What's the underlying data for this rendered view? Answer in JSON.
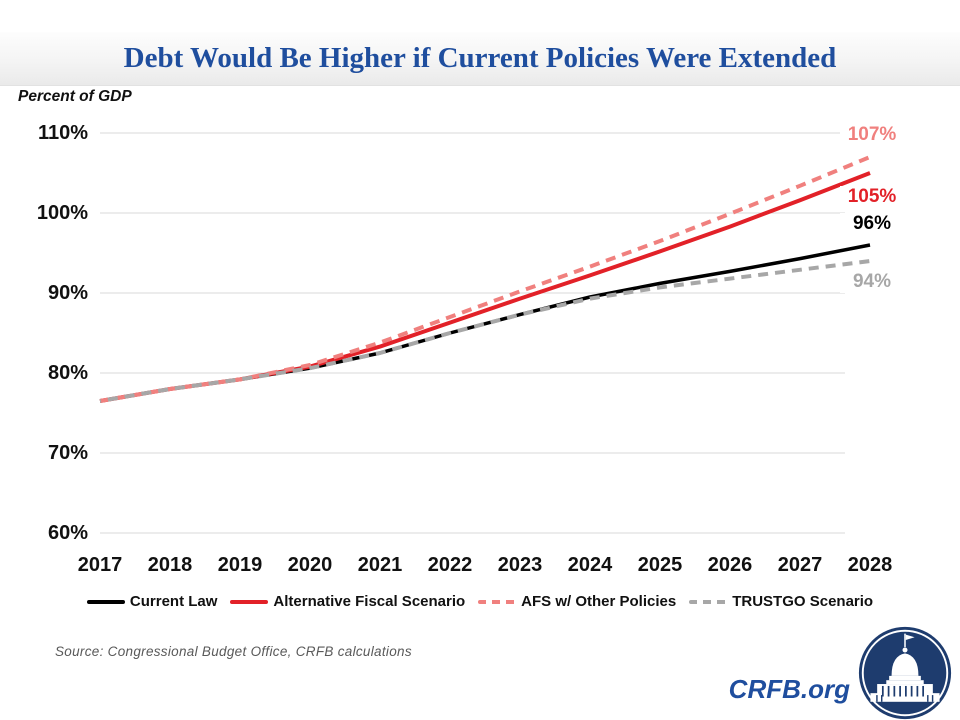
{
  "title": "Debt Would Be Higher if Current Policies Were Extended",
  "y_axis_label": "Percent of GDP",
  "source": "Source: Congressional Budget Office, CRFB calculations",
  "footer": {
    "brand": "CRFB.org",
    "logo": "capitol-icon"
  },
  "colors": {
    "title_blue": "#1F4E9E",
    "gridline": "#D9D9D9",
    "current_law": "#000000",
    "afs": "#E22128",
    "afs_other": "#F0807E",
    "trustgo": "#A7A7A7",
    "source_text": "#595959",
    "logo_navy": "#1E3C6E"
  },
  "chart_data": {
    "type": "line",
    "x": [
      2017,
      2018,
      2019,
      2020,
      2021,
      2022,
      2023,
      2024,
      2025,
      2026,
      2027,
      2028
    ],
    "ylim": [
      60,
      110
    ],
    "grid": true,
    "legend_position": "bottom",
    "y_ticks": [
      "110%",
      "100%",
      "90%",
      "80%",
      "70%",
      "60%"
    ],
    "series": [
      {
        "name": "Current Law",
        "color": "#000000",
        "style": "solid",
        "end_label": "96%",
        "values": [
          76.5,
          78.0,
          79.2,
          80.6,
          82.5,
          85.0,
          87.3,
          89.5,
          91.2,
          92.7,
          94.3,
          96.0
        ]
      },
      {
        "name": "Alternative Fiscal Scenario",
        "color": "#E22128",
        "style": "solid",
        "end_label": "105%",
        "values": [
          76.5,
          78.0,
          79.2,
          80.8,
          83.3,
          86.3,
          89.3,
          92.2,
          95.2,
          98.3,
          101.6,
          105.0
        ]
      },
      {
        "name": "AFS w/ Other Policies",
        "color": "#F0807E",
        "style": "dashed",
        "end_label": "107%",
        "values": [
          76.5,
          78.0,
          79.2,
          81.0,
          83.8,
          87.0,
          90.2,
          93.3,
          96.5,
          99.9,
          103.4,
          107.0
        ]
      },
      {
        "name": "TRUSTGO Scenario",
        "color": "#A7A7A7",
        "style": "dashed",
        "end_label": "94%",
        "values": [
          76.5,
          78.0,
          79.2,
          80.6,
          82.5,
          85.0,
          87.3,
          89.3,
          90.7,
          91.8,
          92.9,
          94.0
        ]
      }
    ]
  }
}
